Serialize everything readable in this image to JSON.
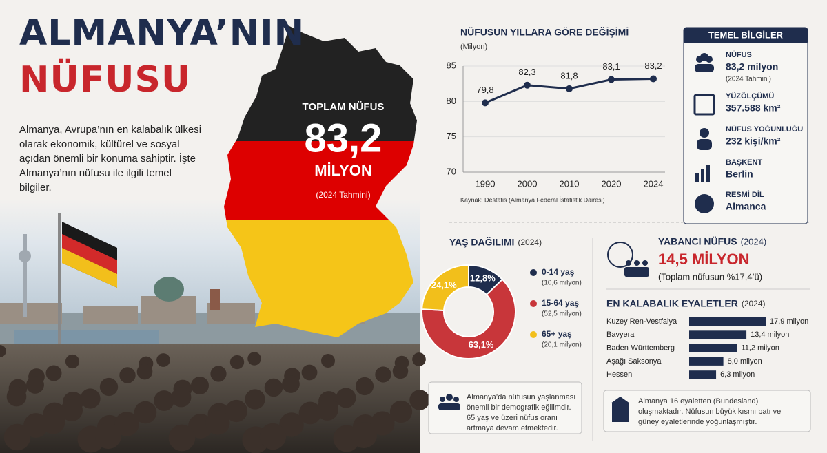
{
  "header": {
    "title_line1": "ALMANYA’NIN",
    "title_line2": "NÜFUSU",
    "intro": "Almanya, Avrupa’nın en kalabalık ülkesi olarak ekonomik, kültürel ve sosyal açıdan önemli bir konuma sahiptir. İşte Almanya’nın nüfusu ile ilgili temel bilgiler."
  },
  "map": {
    "label": "TOPLAM NÜFUS",
    "value": "83,2",
    "unit": "MİLYON",
    "note": "(2024 Tahmini)"
  },
  "chart_data": [
    {
      "type": "line",
      "title": "NÜFUSUN YILLARA GÖRE DEĞİŞİMİ",
      "subtitle": "(Milyon)",
      "categories": [
        "1990",
        "2000",
        "2010",
        "2020",
        "2024"
      ],
      "values": [
        79.8,
        82.3,
        81.8,
        83.1,
        83.2
      ],
      "value_labels": [
        "79,8",
        "82,3",
        "81,8",
        "83,1",
        "83,2"
      ],
      "color": "#1f2d4d",
      "ylim": [
        70,
        85
      ],
      "yticks": [
        70,
        75,
        80,
        85
      ],
      "grid": true,
      "source": "Kaynak: Destatis (Almanya Federal İstatistik Dairesi)"
    },
    {
      "type": "donut",
      "title": "YAŞ DAĞILIMI",
      "subtitle": "(2024)",
      "categories": [
        "0-14 yaş",
        "15-64 yaş",
        "65+ yaş"
      ],
      "sublabels": [
        "(10,6 milyon)",
        "(52,5 milyon)",
        "(20,1 milyon)"
      ],
      "values": [
        12.8,
        63.1,
        24.1
      ],
      "value_labels": [
        "12,8%",
        "63,1%",
        "24,1%"
      ],
      "colors": [
        "#1f2d4d",
        "#c8363a",
        "#f2bf1b"
      ]
    },
    {
      "type": "hbar",
      "title": "EN KALABALIK EYALETLER",
      "subtitle": "(2024)",
      "categories": [
        "Kuzey Ren-Vestfalya",
        "Bavyera",
        "Baden-Württemberg",
        "Aşağı Saksonya",
        "Hessen"
      ],
      "values": [
        17.9,
        13.4,
        11.2,
        8.0,
        6.3
      ],
      "value_labels": [
        "17,9 milyon",
        "13,4 milyon",
        "11,2 milyon",
        "8,0 milyon",
        "6,3 milyon"
      ],
      "color": "#1f2d4d"
    }
  ],
  "facts": {
    "title": "TEMEL BİLGİLER",
    "items": [
      {
        "label": "NÜFUS",
        "value": "83,2 milyon",
        "note": "(2024 Tahmini)"
      },
      {
        "label": "YÜZÖLÇÜMÜ",
        "value": "357.588 km²"
      },
      {
        "label": "NÜFUS YOĞUNLUĞU",
        "value": "232 kişi/km²"
      },
      {
        "label": "BAŞKENT",
        "value": "Berlin"
      },
      {
        "label": "RESMİ DİL",
        "value": "Almanca"
      }
    ]
  },
  "foreign": {
    "title": "YABANCI NÜFUS",
    "title_note": "(2024)",
    "value": "14,5 MİLYON",
    "note": "(Toplam nüfusun %17,4’ü)"
  },
  "notes": {
    "aging": "Almanya’da nüfusun yaşlanması önemli bir demografik eğilimdir. 65 yaş ve üzeri nüfus oranı artmaya devam etmektedir.",
    "states": "Almanya 16 eyaletten (Bundesland) oluşmaktadır. Nüfusun büyük kısmı batı ve güney eyaletlerinde yoğunlaşmıştır."
  }
}
